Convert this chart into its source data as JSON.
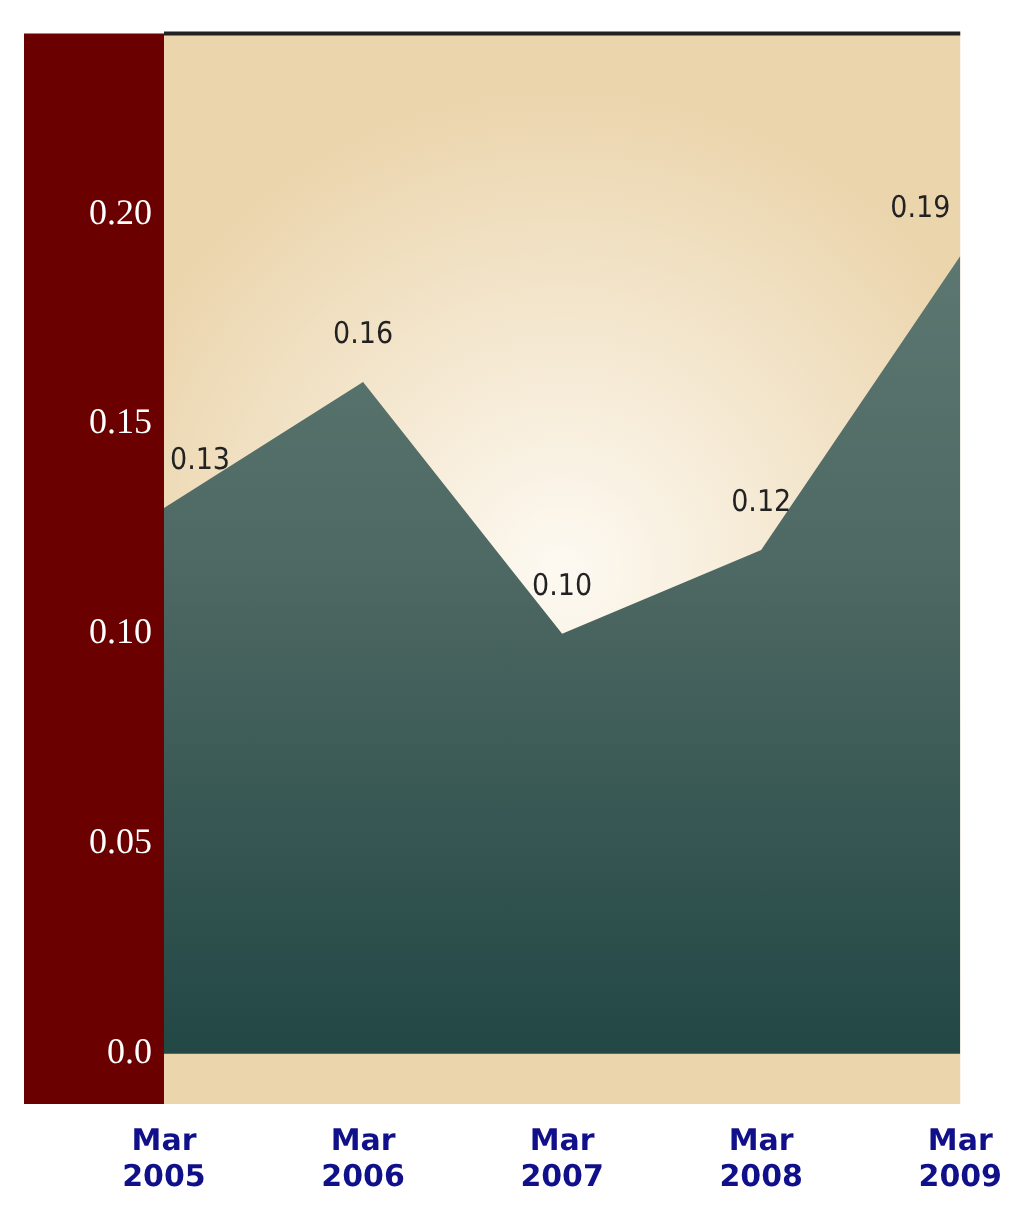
{
  "chart_data": {
    "type": "area",
    "categories": [
      "Mar 2005",
      "Mar 2006",
      "Mar 2007",
      "Mar 2008",
      "Mar 2009"
    ],
    "values": [
      0.13,
      0.16,
      0.1,
      0.12,
      0.19
    ],
    "color": "#4e6863",
    "ylim": [
      -0.012,
      0.243
    ],
    "yticks": [
      {
        "value": 0,
        "label": "0.0"
      },
      0.05,
      {
        "value": 0.1,
        "label": "0.10"
      },
      0.15,
      {
        "value": 0.2,
        "label": "0.20"
      }
    ],
    "value_labels": [
      "0.13",
      "0.16",
      "0.10",
      "0.12",
      "0.19"
    ],
    "grid": false,
    "legend": false
  }
}
